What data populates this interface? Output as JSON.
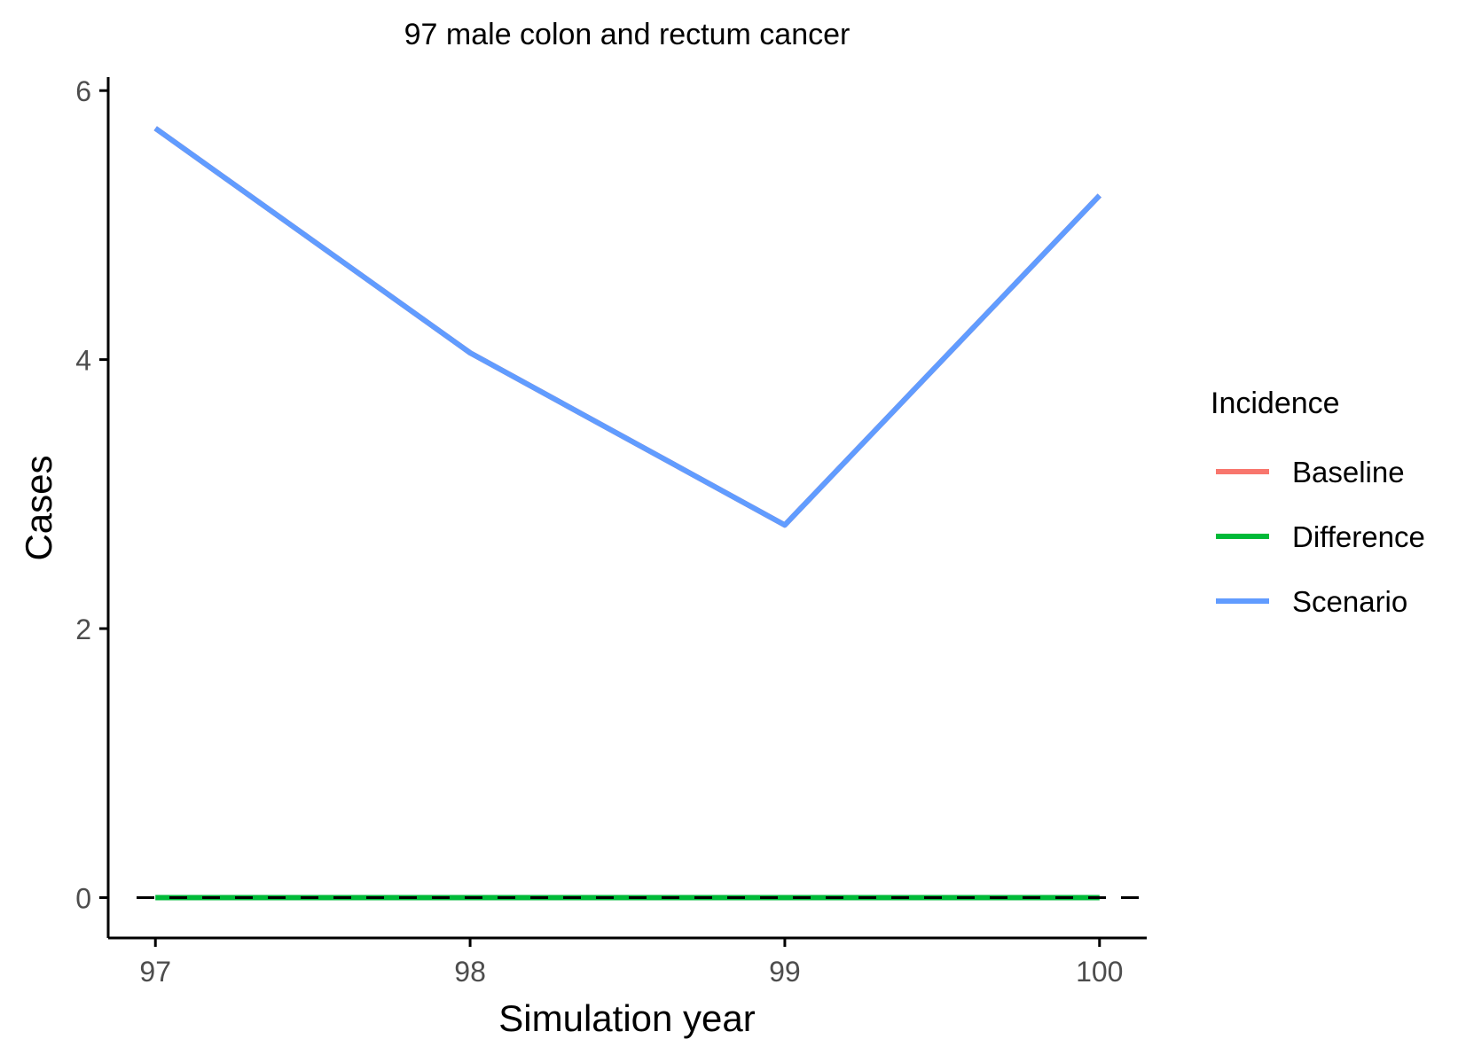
{
  "chart_data": {
    "type": "line",
    "title": "97 male colon and rectum cancer",
    "xlabel": "Simulation year",
    "ylabel": "Cases",
    "x": [
      97,
      98,
      99,
      100
    ],
    "x_ticks": [
      "97",
      "98",
      "99",
      "100"
    ],
    "y_ticks": [
      "0",
      "2",
      "4",
      "6"
    ],
    "xlim": [
      96.85,
      100.15
    ],
    "ylim": [
      -0.3,
      6.1
    ],
    "grid": false,
    "reference_line": {
      "y": 0,
      "style": "dashed",
      "color": "#000000"
    },
    "legend": {
      "title": "Incidence",
      "placement": "right"
    },
    "series": [
      {
        "name": "Baseline",
        "color": "#F8766D",
        "values": [
          5.72,
          4.05,
          2.77,
          5.22
        ]
      },
      {
        "name": "Difference",
        "color": "#00BA38",
        "values": [
          0,
          0,
          0,
          0
        ]
      },
      {
        "name": "Scenario",
        "color": "#619CFF",
        "values": [
          5.72,
          4.05,
          2.77,
          5.22
        ]
      }
    ]
  }
}
